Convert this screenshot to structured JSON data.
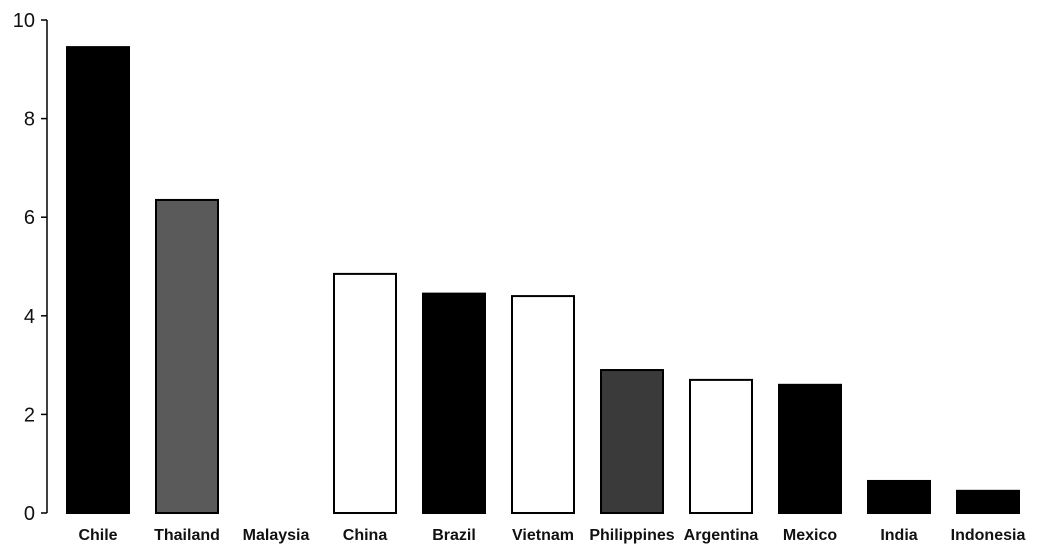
{
  "chart_data": {
    "type": "bar",
    "title": "",
    "xlabel": "",
    "ylabel": "",
    "ylim": [
      0,
      10
    ],
    "yticks": [
      "0",
      "2",
      "4",
      "6",
      "8",
      "10"
    ],
    "grid": false,
    "legend": "none",
    "categories": [
      "Chile",
      "Thailand",
      "Malaysia",
      "China",
      "Brazil",
      "Vietnam",
      "Philippines",
      "Argentina",
      "Mexico",
      "India",
      "Indonesia"
    ],
    "values": [
      9.45,
      6.35,
      0,
      4.85,
      4.45,
      4.4,
      2.9,
      2.7,
      2.6,
      0.65,
      0.45
    ],
    "fills": [
      "#000000",
      "#5a5a5a",
      "#ffffff",
      "#ffffff",
      "#000000",
      "#ffffff",
      "#3a3a3a",
      "#ffffff",
      "#000000",
      "#000000",
      "#000000"
    ],
    "outline_color": "#000000"
  }
}
